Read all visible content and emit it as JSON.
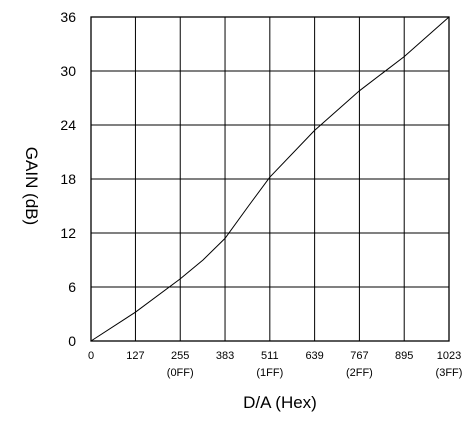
{
  "chart_data": {
    "type": "line",
    "title": "",
    "xlabel": "D/A (Hex)",
    "ylabel": "GAIN (dB)",
    "xlim": [
      0,
      1023
    ],
    "ylim": [
      0,
      36
    ],
    "grid": true,
    "x_ticks": [
      {
        "value": 0,
        "label": "0",
        "sub": ""
      },
      {
        "value": 127,
        "label": "127",
        "sub": ""
      },
      {
        "value": 255,
        "label": "255",
        "sub": "(0FF)"
      },
      {
        "value": 383,
        "label": "383",
        "sub": ""
      },
      {
        "value": 511,
        "label": "511",
        "sub": "(1FF)"
      },
      {
        "value": 639,
        "label": "639",
        "sub": ""
      },
      {
        "value": 767,
        "label": "767",
        "sub": "(2FF)"
      },
      {
        "value": 895,
        "label": "895",
        "sub": ""
      },
      {
        "value": 1023,
        "label": "1023",
        "sub": "(3FF)"
      }
    ],
    "y_ticks": [
      {
        "value": 0,
        "label": "0"
      },
      {
        "value": 6,
        "label": "6"
      },
      {
        "value": 12,
        "label": "12"
      },
      {
        "value": 18,
        "label": "18"
      },
      {
        "value": 24,
        "label": "24"
      },
      {
        "value": 30,
        "label": "30"
      },
      {
        "value": 36,
        "label": "36"
      }
    ],
    "series": [
      {
        "points": [
          [
            0,
            0
          ],
          [
            127,
            3.2
          ],
          [
            255,
            6.9
          ],
          [
            320,
            9.0
          ],
          [
            383,
            11.4
          ],
          [
            450,
            15.0
          ],
          [
            511,
            18.2
          ],
          [
            639,
            23.4
          ],
          [
            767,
            27.8
          ],
          [
            895,
            31.6
          ],
          [
            1023,
            36.0
          ]
        ]
      }
    ]
  }
}
